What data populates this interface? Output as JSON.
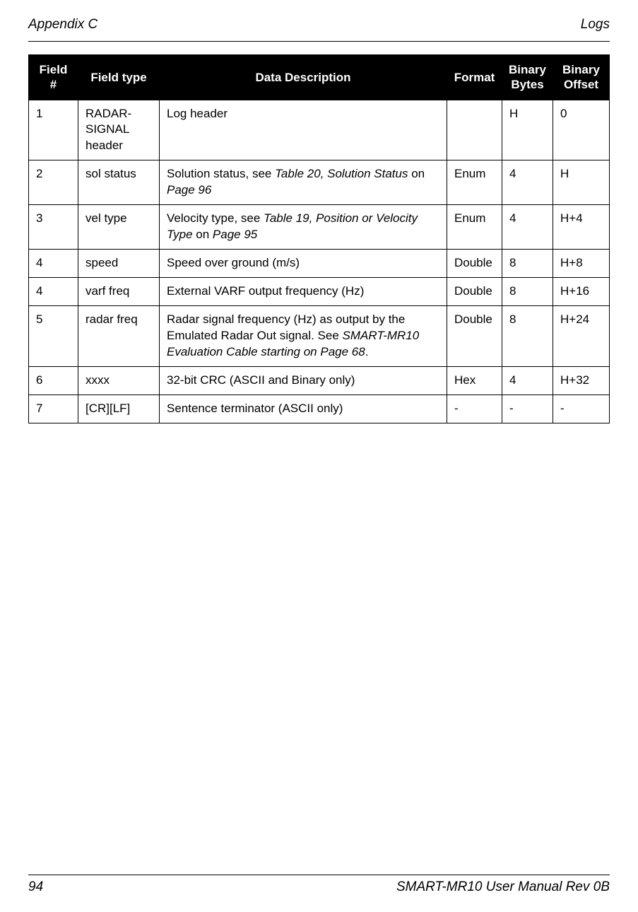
{
  "header": {
    "left": "Appendix C",
    "right": "Logs"
  },
  "table": {
    "columns": {
      "field_num": "Field #",
      "field_type": "Field type",
      "data_desc": "Data Description",
      "format": "Format",
      "bytes": "Binary Bytes",
      "offset": "Binary Offset"
    },
    "rows": [
      {
        "num": "1",
        "type": "RADAR-SIGNAL header",
        "desc_parts": [
          {
            "t": "Log header",
            "i": false
          }
        ],
        "format": "",
        "bytes": "H",
        "offset": "0"
      },
      {
        "num": "2",
        "type": "sol status",
        "desc_parts": [
          {
            "t": "Solution status, see ",
            "i": false
          },
          {
            "t": "Table 20,  Solution Status",
            "i": true
          },
          {
            "t": " on ",
            "i": false
          },
          {
            "t": "Page 96",
            "i": true
          }
        ],
        "format": "Enum",
        "bytes": "4",
        "offset": "H"
      },
      {
        "num": "3",
        "type": "vel type",
        "desc_parts": [
          {
            "t": "Velocity type, see ",
            "i": false
          },
          {
            "t": "Table 19,  Position or Velocity Type",
            "i": true
          },
          {
            "t": " on ",
            "i": false
          },
          {
            "t": "Page 95",
            "i": true
          }
        ],
        "format": "Enum",
        "bytes": "4",
        "offset": "H+4"
      },
      {
        "num": "4",
        "type": "speed",
        "desc_parts": [
          {
            "t": "Speed over ground (m/s)",
            "i": false
          }
        ],
        "format": "Double",
        "bytes": "8",
        "offset": "H+8"
      },
      {
        "num": "4",
        "type": "varf freq",
        "desc_parts": [
          {
            "t": "External VARF output frequency (Hz)",
            "i": false
          }
        ],
        "format": "Double",
        "bytes": "8",
        "offset": "H+16"
      },
      {
        "num": "5",
        "type": "radar freq",
        "desc_parts": [
          {
            "t": "Radar signal frequency (Hz) as output by the Emulated Radar Out signal. See ",
            "i": false
          },
          {
            "t": "SMART-MR10 Evaluation Cable starting on Page 68",
            "i": true
          },
          {
            "t": ".",
            "i": false
          }
        ],
        "format": "Double",
        "bytes": "8",
        "offset": "H+24"
      },
      {
        "num": "6",
        "type": "xxxx",
        "desc_parts": [
          {
            "t": "32-bit CRC (ASCII and Binary only)",
            "i": false
          }
        ],
        "format": "Hex",
        "bytes": "4",
        "offset": "H+32"
      },
      {
        "num": "7",
        "type": "[CR][LF]",
        "desc_parts": [
          {
            "t": "Sentence terminator (ASCII only)",
            "i": false
          }
        ],
        "format": "-",
        "bytes": "-",
        "offset": "-"
      }
    ]
  },
  "footer": {
    "page_num": "94",
    "manual": "SMART-MR10 User Manual Rev 0B"
  }
}
